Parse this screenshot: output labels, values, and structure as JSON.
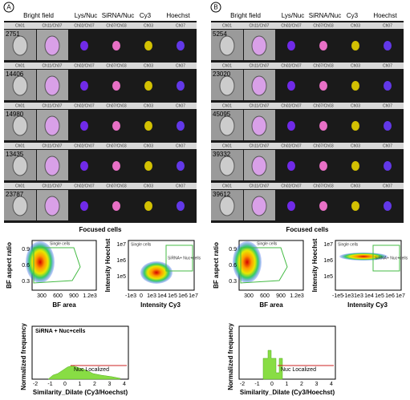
{
  "panels": [
    {
      "label": "A",
      "columns": [
        "Bright field",
        "Lys/Nuc",
        "SiRNA/Nuc",
        "Cy3",
        "Hoechst"
      ],
      "channel_labels": [
        "Ch01",
        "Ch11/Ch07",
        "Ch02/Ch07",
        "Ch07/Ch03",
        "Ch03",
        "Ch07"
      ],
      "cells": [
        "2751",
        "14406",
        "14980",
        "13435",
        "23787"
      ],
      "caption": "Focused cells",
      "scatter1": {
        "ylabel": "BF aspect ratio",
        "xlabel": "BF area",
        "gate": "Single cells",
        "yticks": [
          "0.9",
          "0.6",
          "0.3"
        ],
        "xticks": [
          "300",
          "600",
          "900",
          "1.2e3"
        ]
      },
      "scatter2": {
        "ylabel": "Intensity Hoechst",
        "xlabel": "Intensity Cy3",
        "gates": [
          "Single cells",
          "SiRNA+ Nuc+cells"
        ],
        "yticks": [
          "1e7",
          "1e6",
          "1e5"
        ],
        "xticks": [
          "-1e3",
          "0",
          "1e3",
          "1e4",
          "1e5",
          "1e6",
          "1e7"
        ]
      },
      "histogram": {
        "title": "SiRNA + Nuc+cells",
        "ylabel": "Normalized frequency",
        "xlabel": "Similarity_Dilate (Cy3/Hoechst)",
        "gate": "Nuc Localized",
        "xticks": [
          "-2",
          "-1",
          "0",
          "1",
          "2",
          "3",
          "4"
        ]
      }
    },
    {
      "label": "B",
      "columns": [
        "Bright field",
        "Lys/Nuc",
        "SiRNA/Nuc",
        "Cy3",
        "Hoechst"
      ],
      "channel_labels": [
        "Ch01",
        "Ch11/Ch07",
        "Ch02/Ch07",
        "Ch07/Ch03",
        "Ch03",
        "Ch07"
      ],
      "cells": [
        "5254",
        "23020",
        "45095",
        "39332",
        "39612"
      ],
      "caption": "Focused cells",
      "scatter1": {
        "ylabel": "BF aspect ratio",
        "xlabel": "BF area",
        "gate": "Single cells",
        "yticks": [
          "0.9",
          "0.6",
          "0.3"
        ],
        "xticks": [
          "300",
          "600",
          "900",
          "1.2e3"
        ]
      },
      "scatter2": {
        "ylabel": "Intensity Hoechst",
        "xlabel": "Intensity Cy3",
        "gates": [
          "Single cells",
          "SiRNA+ Nuc+cells"
        ],
        "yticks": [
          "1e7",
          "1e6",
          "1e5"
        ],
        "xticks": [
          "-1e5",
          "-1e3",
          "1e3",
          "1e4",
          "1e5",
          "1e6",
          "1e7"
        ]
      },
      "histogram": {
        "title": "",
        "ylabel": "Normalized frequency",
        "xlabel": "Similarity_Dilate (Cy3/Hoechst)",
        "gate": "Nuc Localized",
        "xticks": [
          "-2",
          "-1",
          "0",
          "1",
          "2",
          "3",
          "4"
        ]
      }
    }
  ]
}
